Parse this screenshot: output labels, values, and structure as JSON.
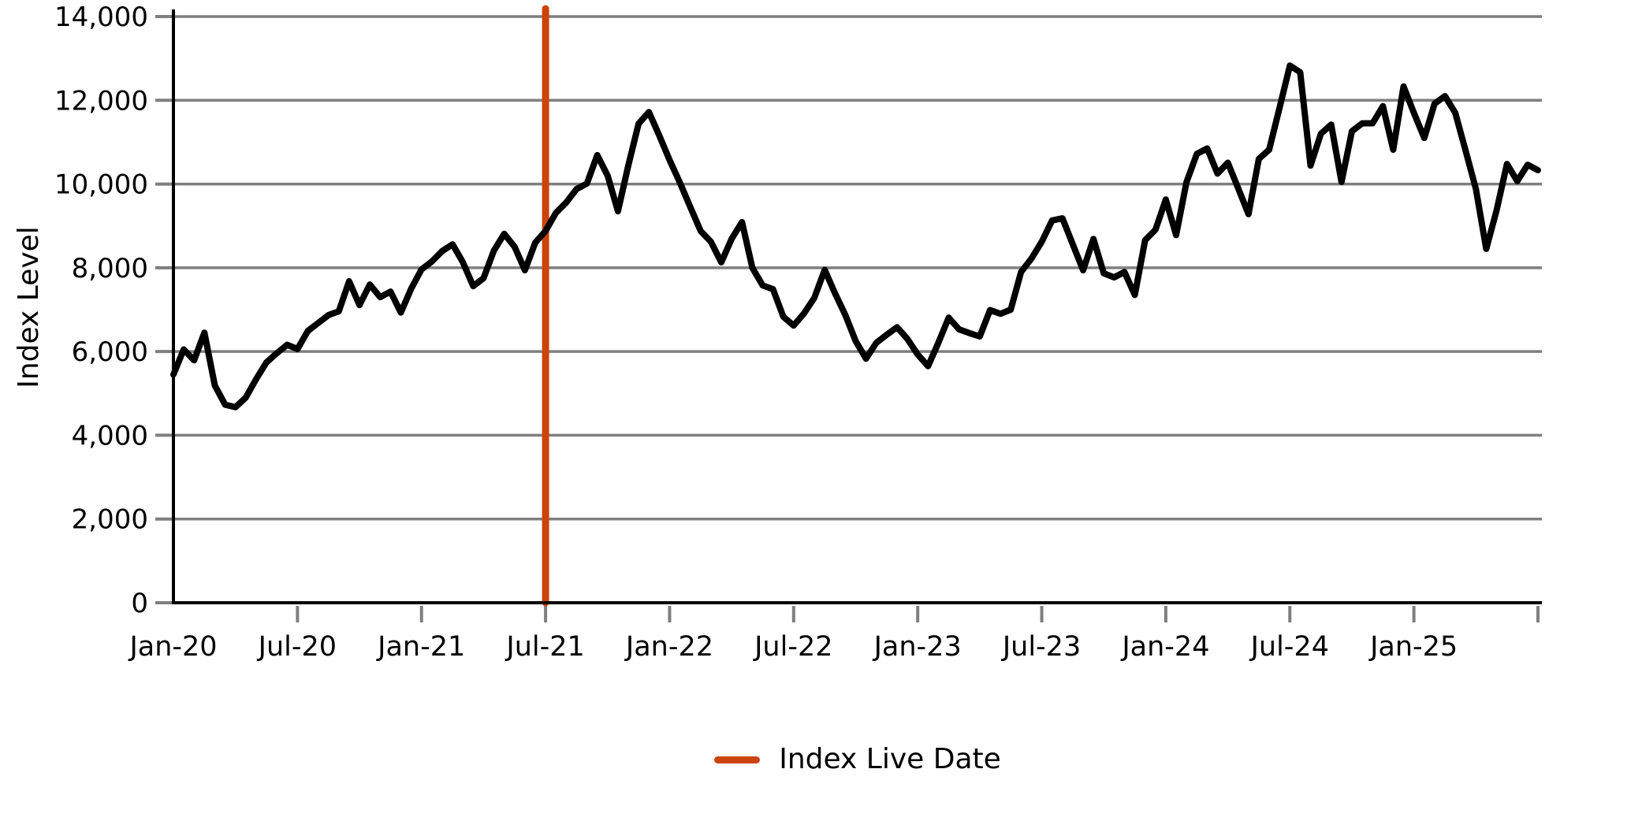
{
  "figure": {
    "background": "#ffffff"
  },
  "colors": {
    "grid": "#7F7F7F",
    "tick": "#7F7F7F",
    "axis": "#000000",
    "series_line": "#000000",
    "live_date_line": "#CB440B",
    "background": "#ffffff"
  },
  "legend": {
    "items": [
      {
        "label": "Index Live Date",
        "marker": "line",
        "color": "#CB440B"
      }
    ]
  },
  "chart_data": {
    "type": "line",
    "title": "",
    "xlabel": "",
    "ylabel": "Index Level",
    "ylim": [
      0,
      14000
    ],
    "grid": "horizontal-only",
    "legend_position": "bottom-center",
    "x_unit": "months since Jan-2020 (0 = Jan-2020), sampled semi-monthly",
    "x_range_months": [
      0,
      66
    ],
    "x_ticks": [
      {
        "month": 0,
        "label": "Jan-20"
      },
      {
        "month": 6,
        "label": "Jul-20"
      },
      {
        "month": 12,
        "label": "Jan-21"
      },
      {
        "month": 18,
        "label": "Jul-21"
      },
      {
        "month": 24,
        "label": "Jan-22"
      },
      {
        "month": 30,
        "label": "Jul-22"
      },
      {
        "month": 36,
        "label": "Jan-23"
      },
      {
        "month": 42,
        "label": "Jul-23"
      },
      {
        "month": 48,
        "label": "Jan-24"
      },
      {
        "month": 54,
        "label": "Jul-24"
      },
      {
        "month": 60,
        "label": "Jan-25"
      },
      {
        "month": 66,
        "label": ""
      }
    ],
    "y_ticks": [
      {
        "value": 0,
        "label": "0"
      },
      {
        "value": 2000,
        "label": "2,000"
      },
      {
        "value": 4000,
        "label": "4,000"
      },
      {
        "value": 6000,
        "label": "6,000"
      },
      {
        "value": 8000,
        "label": "8,000"
      },
      {
        "value": 10000,
        "label": "10,000"
      },
      {
        "value": 12000,
        "label": "12,000"
      },
      {
        "value": 14000,
        "label": "14,000"
      }
    ],
    "vline": {
      "x_month": 18,
      "date_label": "Jul-21",
      "legend_label": "Index Live Date",
      "color": "#CB440B"
    },
    "series": [
      {
        "name": "Index Level",
        "color": "#000000",
        "x_months": [
          0,
          0.5,
          1,
          1.5,
          2,
          2.5,
          3,
          3.5,
          4,
          4.5,
          5,
          5.5,
          6,
          6.5,
          7,
          7.5,
          8,
          8.5,
          9,
          9.5,
          10,
          10.5,
          11,
          11.5,
          12,
          12.5,
          13,
          13.5,
          14,
          14.5,
          15,
          15.5,
          16,
          16.5,
          17,
          17.5,
          18,
          18.5,
          19,
          19.5,
          20,
          20.5,
          21,
          21.5,
          22,
          22.5,
          23,
          23.5,
          24,
          24.5,
          25,
          25.5,
          26,
          26.5,
          27,
          27.5,
          28,
          28.5,
          29,
          29.5,
          30,
          30.5,
          31,
          31.5,
          32,
          32.5,
          33,
          33.5,
          34,
          34.5,
          35,
          35.5,
          36,
          36.5,
          37,
          37.5,
          38,
          38.5,
          39,
          39.5,
          40,
          40.5,
          41,
          41.5,
          42,
          42.5,
          43,
          43.5,
          44,
          44.5,
          45,
          45.5,
          46,
          46.5,
          47,
          47.5,
          48,
          48.5,
          49,
          49.5,
          50,
          50.5,
          51,
          51.5,
          52,
          52.5,
          53,
          53.5,
          54,
          54.5,
          55,
          55.5,
          56,
          56.5,
          57,
          57.5,
          58,
          58.5,
          59,
          59.5,
          60,
          60.5,
          61,
          61.5,
          62,
          62.5,
          63,
          63.5,
          64,
          64.5,
          65,
          65.5,
          66
        ],
        "values": [
          5450,
          6050,
          5790,
          6450,
          5190,
          4730,
          4670,
          4900,
          5340,
          5740,
          5960,
          6160,
          6060,
          6490,
          6680,
          6870,
          6960,
          7680,
          7110,
          7600,
          7300,
          7430,
          6930,
          7500,
          7960,
          8150,
          8400,
          8560,
          8130,
          7560,
          7750,
          8410,
          8810,
          8500,
          7940,
          8600,
          8880,
          9310,
          9560,
          9880,
          10010,
          10690,
          10200,
          9350,
          10440,
          11440,
          11720,
          11160,
          10570,
          10030,
          9450,
          8880,
          8620,
          8130,
          8690,
          9090,
          8000,
          7580,
          7490,
          6830,
          6620,
          6910,
          7280,
          7950,
          7390,
          6870,
          6250,
          5830,
          6210,
          6400,
          6580,
          6300,
          5930,
          5650,
          6210,
          6810,
          6530,
          6440,
          6360,
          6990,
          6900,
          7000,
          7900,
          8220,
          8620,
          9130,
          9180,
          8560,
          7940,
          8690,
          7870,
          7770,
          7900,
          7350,
          8660,
          8910,
          9630,
          8780,
          10040,
          10720,
          10850,
          10250,
          10510,
          9900,
          9280,
          10600,
          10820,
          11820,
          12830,
          12670,
          10440,
          11200,
          11420,
          10050,
          11260,
          11450,
          11450,
          11860,
          10820,
          12330,
          11700,
          11100,
          11920,
          12100,
          11700,
          10800,
          9880,
          8450,
          9370,
          10480,
          10070,
          10460,
          10330
        ]
      }
    ]
  }
}
